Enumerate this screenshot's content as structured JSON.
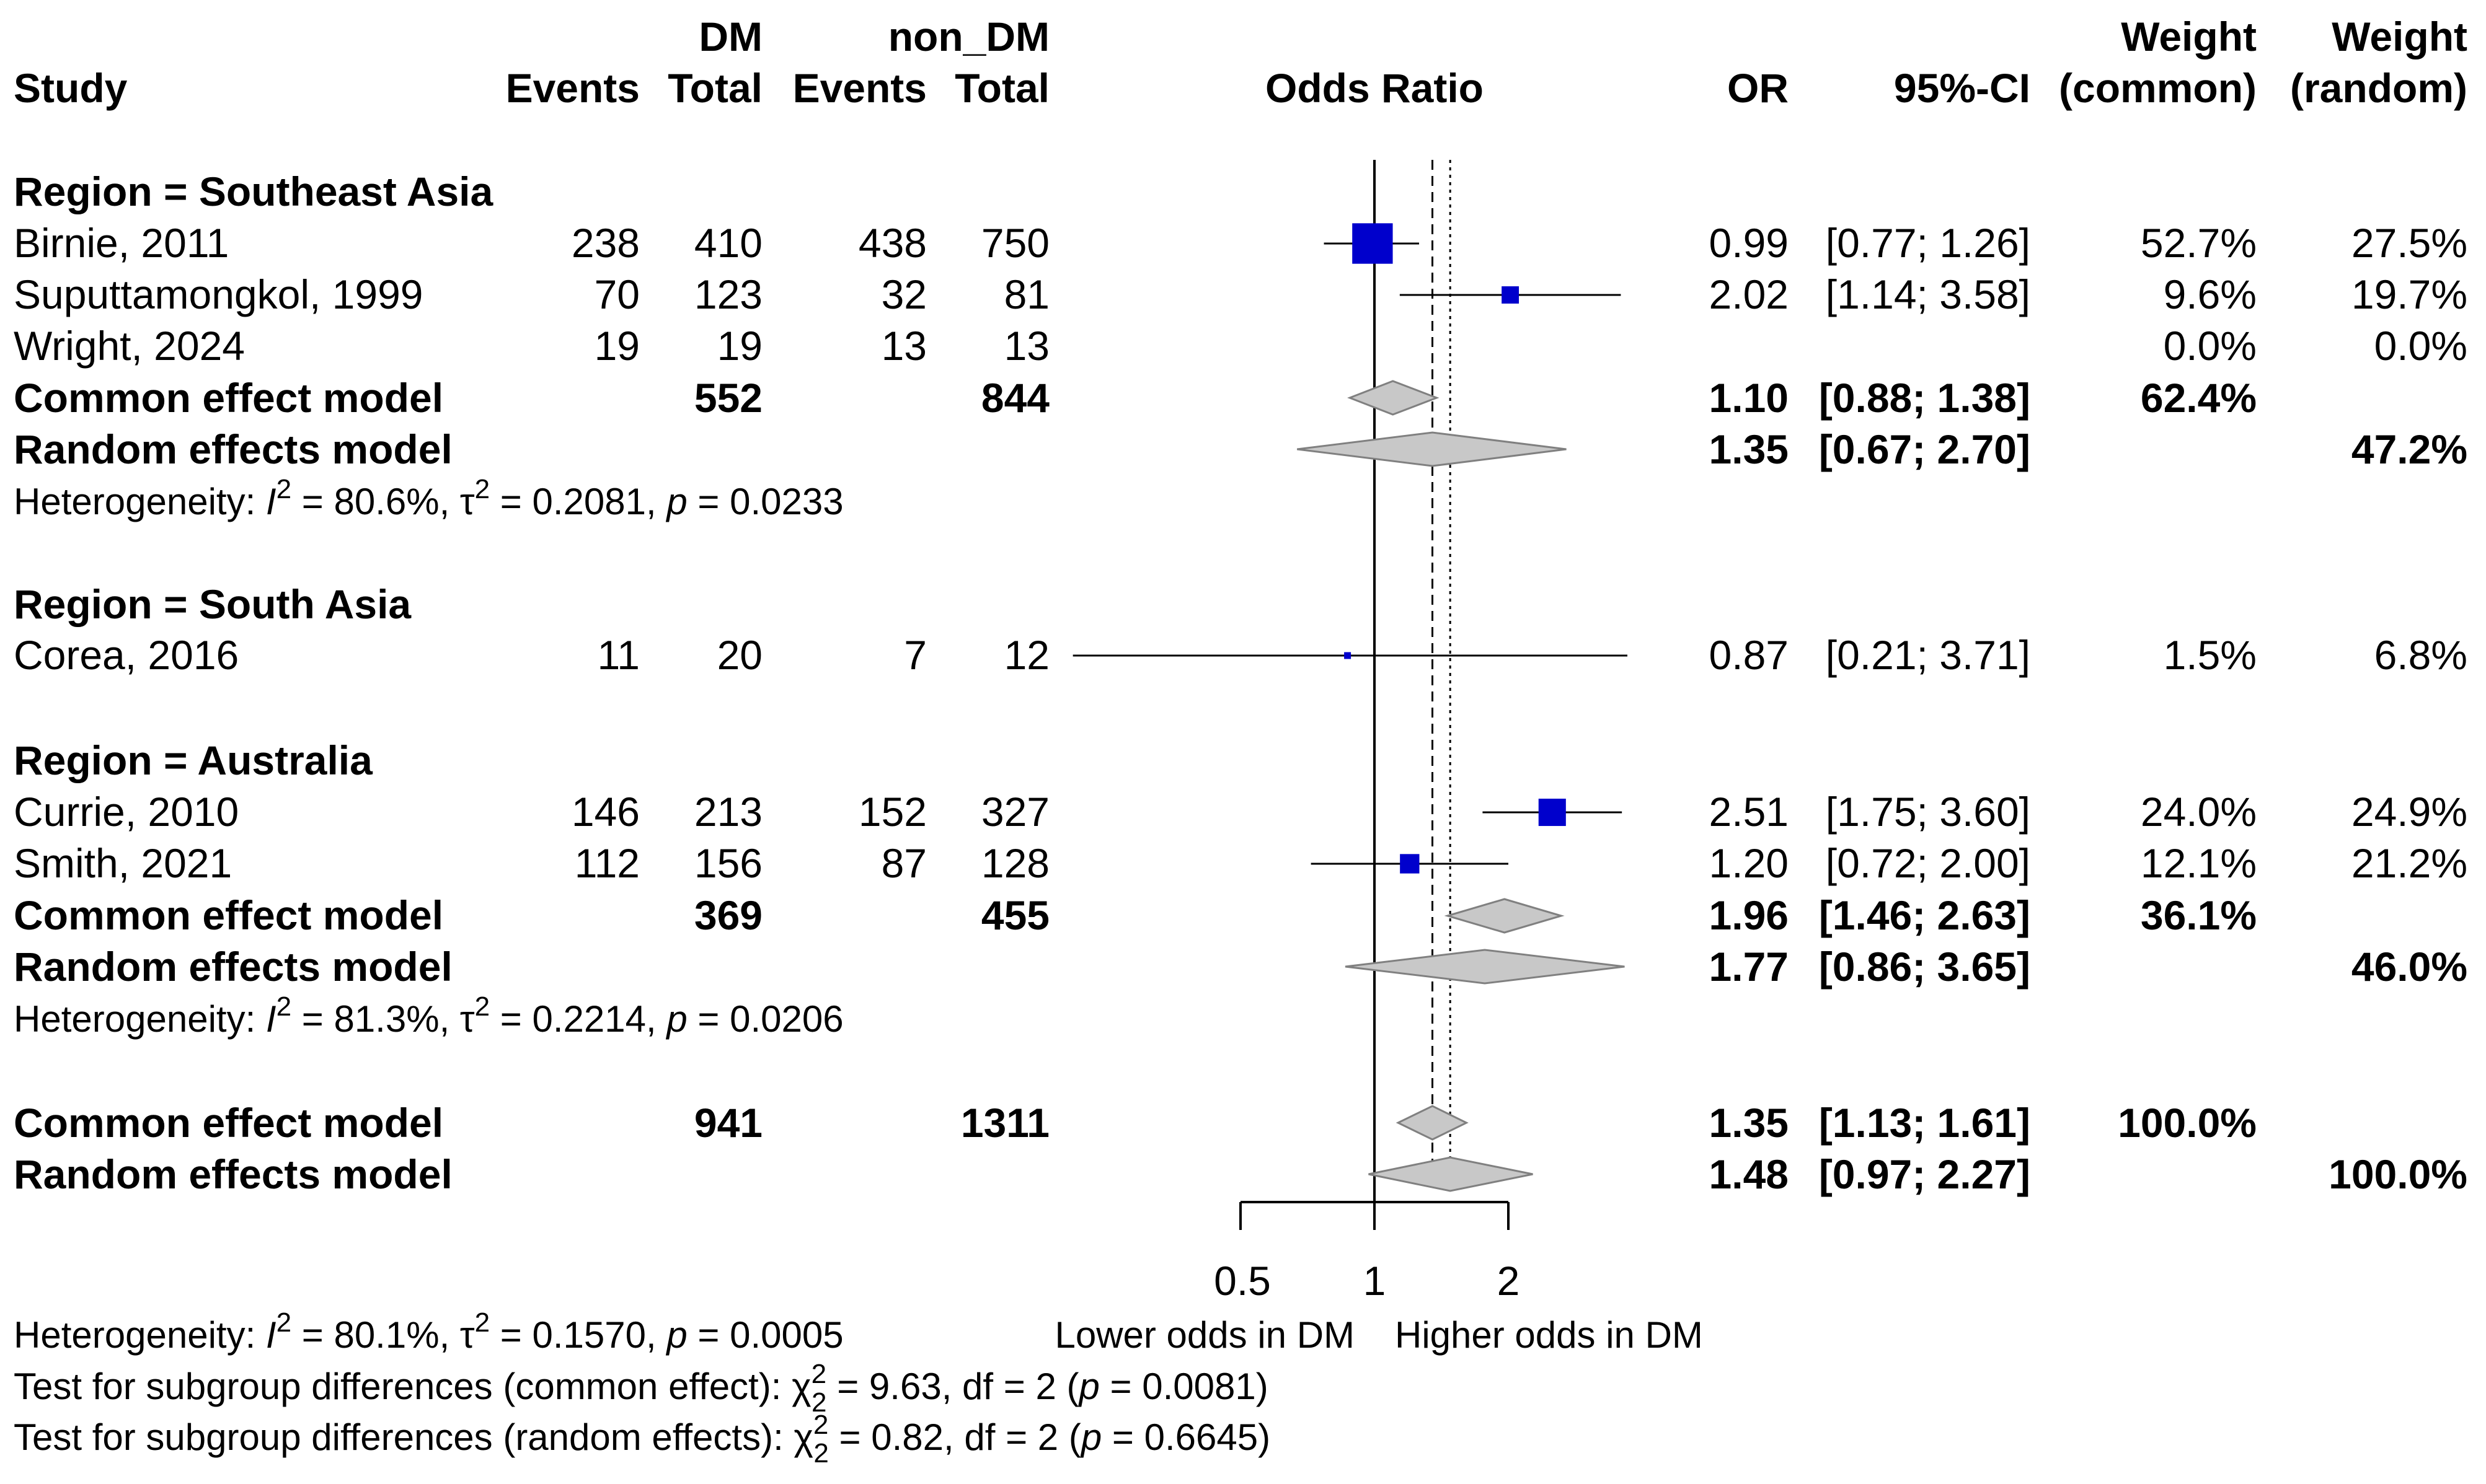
{
  "header": {
    "col_dm": "DM",
    "col_non_dm": "non_DM",
    "col_study": "Study",
    "col_events": "Events",
    "col_total": "Total",
    "col_plot": "Odds Ratio",
    "col_or": "OR",
    "col_ci": "95%-CI",
    "col_weight": "Weight",
    "col_common": "(common)",
    "col_random": "(random)"
  },
  "groups": [
    {
      "title": "Region = Southeast Asia",
      "studies": [
        {
          "name": "Birnie, 2011",
          "e1": "238",
          "n1": "410",
          "e2": "438",
          "n2": "750",
          "or": "0.99",
          "ci": "[0.77; 1.26]",
          "wc": "52.7%",
          "wr": "27.5%"
        },
        {
          "name": "Suputtamongkol, 1999",
          "e1": "70",
          "n1": "123",
          "e2": "32",
          "n2": "81",
          "or": "2.02",
          "ci": "[1.14; 3.58]",
          "wc": "9.6%",
          "wr": "19.7%"
        },
        {
          "name": "Wright, 2024",
          "e1": "19",
          "n1": "19",
          "e2": "13",
          "n2": "13",
          "or": "",
          "ci": "",
          "wc": "0.0%",
          "wr": "0.0%"
        }
      ],
      "common": {
        "label": "Common effect model",
        "n1": "552",
        "n2": "844",
        "or": "1.10",
        "ci": "[0.88; 1.38]",
        "w": "62.4%"
      },
      "random": {
        "label": "Random effects model",
        "or": "1.35",
        "ci": "[0.67; 2.70]",
        "w": "47.2%"
      },
      "het": {
        "prefix": "Heterogeneity: ",
        "i2_sym": "I",
        "i2": "= 80.6%,",
        "tau_sym": "τ",
        "tau2": "= 0.2081,",
        "p_sym": "p",
        "p": "= 0.0233"
      }
    },
    {
      "title": "Region = South Asia",
      "studies": [
        {
          "name": "Corea, 2016",
          "e1": "11",
          "n1": "20",
          "e2": "7",
          "n2": "12",
          "or": "0.87",
          "ci": "[0.21; 3.71]",
          "wc": "1.5%",
          "wr": "6.8%"
        }
      ]
    },
    {
      "title": "Region = Australia",
      "studies": [
        {
          "name": "Currie, 2010",
          "e1": "146",
          "n1": "213",
          "e2": "152",
          "n2": "327",
          "or": "2.51",
          "ci": "[1.75; 3.60]",
          "wc": "24.0%",
          "wr": "24.9%"
        },
        {
          "name": "Smith, 2021",
          "e1": "112",
          "n1": "156",
          "e2": "87",
          "n2": "128",
          "or": "1.20",
          "ci": "[0.72; 2.00]",
          "wc": "12.1%",
          "wr": "21.2%"
        }
      ],
      "common": {
        "label": "Common effect model",
        "n1": "369",
        "n2": "455",
        "or": "1.96",
        "ci": "[1.46; 2.63]",
        "w": "36.1%"
      },
      "random": {
        "label": "Random effects model",
        "or": "1.77",
        "ci": "[0.86; 3.65]",
        "w": "46.0%"
      },
      "het": {
        "prefix": "Heterogeneity: ",
        "i2_sym": "I",
        "i2": "= 81.3%,",
        "tau_sym": "τ",
        "tau2": "= 0.2214,",
        "p_sym": "p",
        "p": "= 0.0206"
      }
    }
  ],
  "overall": {
    "common": {
      "label": "Common effect model",
      "n1": "941",
      "n2": "1311",
      "or": "1.35",
      "ci": "[1.13; 1.61]",
      "w": "100.0%"
    },
    "random": {
      "label": "Random effects model",
      "or": "1.48",
      "ci": "[0.97; 2.27]",
      "w": "100.0%"
    },
    "het": {
      "prefix": "Heterogeneity: ",
      "i2_sym": "I",
      "i2": "= 80.1%,",
      "tau_sym": "τ",
      "tau2": "= 0.1570,",
      "p_sym": "p",
      "p": "= 0.0005"
    },
    "sub_common": {
      "prefix": "Test for subgroup differences (common effect): ",
      "chi_sym": "χ",
      "sup": "2",
      "sub": "2",
      "stat": " = 9.63, df = 2 (",
      "p_sym": "p",
      "p": " = 0.0081)"
    },
    "sub_random": {
      "prefix": "Test for subgroup differences (random effects): ",
      "chi_sym": "χ",
      "sup": "2",
      "sub": "2",
      "stat": " = 0.82, df = 2 (",
      "p_sym": "p",
      "p": " = 0.6645)"
    }
  },
  "axis": {
    "ticks": [
      "0.5",
      "1",
      "2"
    ],
    "left_label": "Lower odds in DM",
    "right_label": "Higher odds in DM"
  },
  "chart_data": {
    "type": "forest",
    "title": "Odds Ratio",
    "scale": "log",
    "xlim": [
      0.5,
      2
    ],
    "ref_line": 1,
    "common_line": 1.35,
    "random_line": 1.48,
    "studies": [
      {
        "name": "Birnie, 2011",
        "or": 0.99,
        "lo": 0.77,
        "hi": 1.26,
        "weight": 52.7,
        "group": "Southeast Asia"
      },
      {
        "name": "Suputtamongkol, 1999",
        "or": 2.02,
        "lo": 1.14,
        "hi": 3.58,
        "weight": 9.6,
        "group": "Southeast Asia"
      },
      {
        "name": "Wright, 2024",
        "or": null,
        "lo": null,
        "hi": null,
        "weight": 0.0,
        "group": "Southeast Asia"
      },
      {
        "name": "Corea, 2016",
        "or": 0.87,
        "lo": 0.21,
        "hi": 3.71,
        "weight": 1.5,
        "group": "South Asia"
      },
      {
        "name": "Currie, 2010",
        "or": 2.51,
        "lo": 1.75,
        "hi": 3.6,
        "weight": 24.0,
        "group": "Australia"
      },
      {
        "name": "Smith, 2021",
        "or": 1.2,
        "lo": 0.72,
        "hi": 2.0,
        "weight": 12.1,
        "group": "Australia"
      }
    ],
    "summaries": [
      {
        "name": "SEA common",
        "est": 1.1,
        "lo": 0.88,
        "hi": 1.38
      },
      {
        "name": "SEA random",
        "est": 1.35,
        "lo": 0.67,
        "hi": 2.7
      },
      {
        "name": "Australia common",
        "est": 1.96,
        "lo": 1.46,
        "hi": 2.63
      },
      {
        "name": "Australia random",
        "est": 1.77,
        "lo": 0.86,
        "hi": 3.65
      },
      {
        "name": "Overall common",
        "est": 1.35,
        "lo": 1.13,
        "hi": 1.61
      },
      {
        "name": "Overall random",
        "est": 1.48,
        "lo": 0.97,
        "hi": 2.27
      }
    ],
    "colors": {
      "square": "#0000cc",
      "diamond": "#c8c8c8",
      "diamond_stroke": "#808080",
      "line": "#000000"
    }
  }
}
